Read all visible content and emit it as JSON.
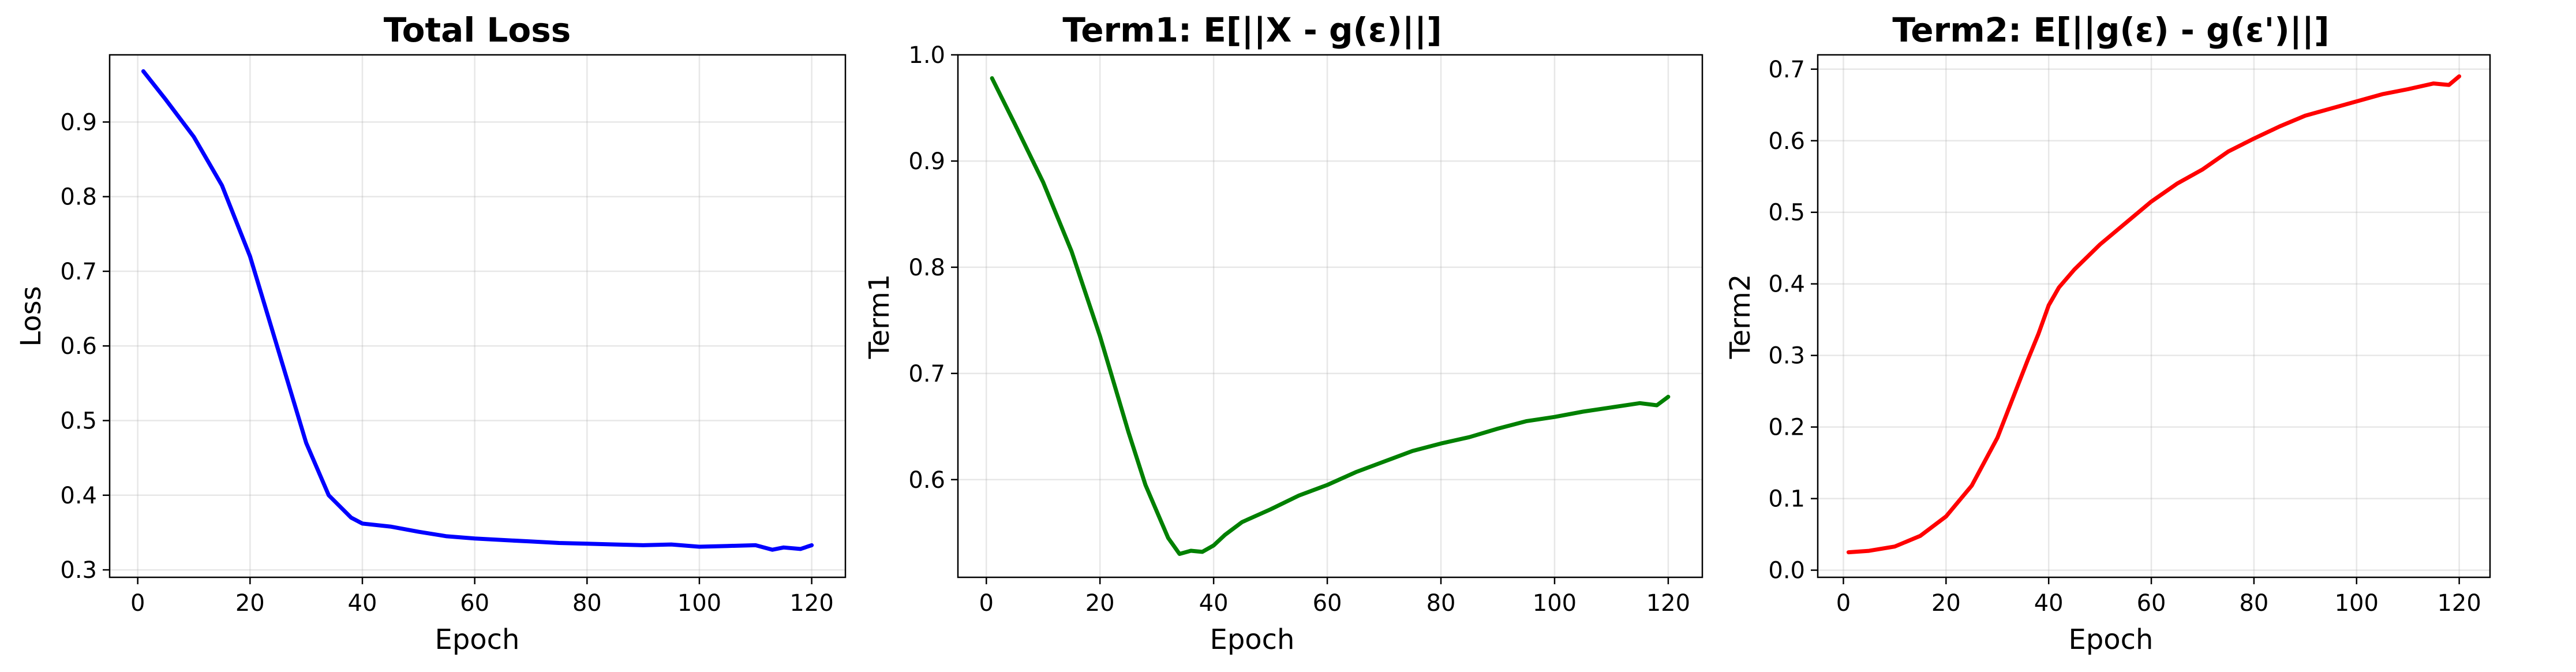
{
  "figure": {
    "background": "#ffffff"
  },
  "chart_data": [
    {
      "type": "line",
      "title": "Total Loss",
      "xlabel": "Epoch",
      "ylabel": "Loss",
      "xlim": [
        -5,
        126
      ],
      "ylim": [
        0.29,
        0.99
      ],
      "xticks": [
        0,
        20,
        40,
        60,
        80,
        100,
        120
      ],
      "xtick_labels": [
        "0",
        "20",
        "40",
        "60",
        "80",
        "100",
        "120"
      ],
      "yticks": [
        0.3,
        0.4,
        0.5,
        0.6,
        0.7,
        0.8,
        0.9
      ],
      "ytick_labels": [
        "0.3",
        "0.4",
        "0.5",
        "0.6",
        "0.7",
        "0.8",
        "0.9"
      ],
      "grid": true,
      "series": [
        {
          "color": "#0000ff",
          "x": [
            1,
            5,
            10,
            15,
            20,
            25,
            30,
            32,
            34,
            36,
            38,
            40,
            45,
            50,
            55,
            60,
            65,
            70,
            75,
            80,
            85,
            90,
            95,
            100,
            105,
            110,
            113,
            115,
            118,
            120
          ],
          "y": [
            0.968,
            0.93,
            0.88,
            0.815,
            0.72,
            0.595,
            0.47,
            0.435,
            0.4,
            0.385,
            0.37,
            0.362,
            0.358,
            0.351,
            0.345,
            0.342,
            0.34,
            0.338,
            0.336,
            0.335,
            0.334,
            0.333,
            0.334,
            0.331,
            0.332,
            0.333,
            0.327,
            0.33,
            0.328,
            0.333
          ]
        }
      ]
    },
    {
      "type": "line",
      "title": "Term1: E[||X - g(ε)||]",
      "xlabel": "Epoch",
      "ylabel": "Term1",
      "xlim": [
        -5,
        126
      ],
      "ylim": [
        0.508,
        1.0
      ],
      "xticks": [
        0,
        20,
        40,
        60,
        80,
        100,
        120
      ],
      "xtick_labels": [
        "0",
        "20",
        "40",
        "60",
        "80",
        "100",
        "120"
      ],
      "yticks": [
        0.6,
        0.7,
        0.8,
        0.9,
        1.0
      ],
      "ytick_labels": [
        "0.6",
        "0.7",
        "0.8",
        "0.9",
        "1.0"
      ],
      "grid": true,
      "series": [
        {
          "color": "#008000",
          "x": [
            1,
            5,
            10,
            15,
            20,
            25,
            28,
            30,
            32,
            34,
            36,
            38,
            40,
            42,
            45,
            50,
            55,
            60,
            65,
            70,
            75,
            80,
            85,
            90,
            95,
            100,
            105,
            110,
            115,
            118,
            120
          ],
          "y": [
            0.978,
            0.935,
            0.88,
            0.815,
            0.735,
            0.645,
            0.595,
            0.57,
            0.545,
            0.53,
            0.533,
            0.532,
            0.538,
            0.548,
            0.56,
            0.572,
            0.585,
            0.595,
            0.607,
            0.617,
            0.627,
            0.634,
            0.64,
            0.648,
            0.655,
            0.659,
            0.664,
            0.668,
            0.672,
            0.67,
            0.678
          ]
        }
      ]
    },
    {
      "type": "line",
      "title": "Term2: E[||g(ε) - g(ε')||]",
      "xlabel": "Epoch",
      "ylabel": "Term2",
      "xlim": [
        -5,
        126
      ],
      "ylim": [
        -0.01,
        0.72
      ],
      "xticks": [
        0,
        20,
        40,
        60,
        80,
        100,
        120
      ],
      "xtick_labels": [
        "0",
        "20",
        "40",
        "60",
        "80",
        "100",
        "120"
      ],
      "yticks": [
        0.0,
        0.1,
        0.2,
        0.3,
        0.4,
        0.5,
        0.6,
        0.7
      ],
      "ytick_labels": [
        "0.0",
        "0.1",
        "0.2",
        "0.3",
        "0.4",
        "0.5",
        "0.6",
        "0.7"
      ],
      "grid": true,
      "series": [
        {
          "color": "#ff0000",
          "x": [
            1,
            5,
            10,
            15,
            20,
            25,
            30,
            33,
            36,
            38,
            40,
            42,
            45,
            50,
            55,
            60,
            65,
            70,
            75,
            80,
            85,
            90,
            95,
            100,
            105,
            110,
            115,
            118,
            120
          ],
          "y": [
            0.025,
            0.027,
            0.033,
            0.048,
            0.075,
            0.118,
            0.185,
            0.24,
            0.295,
            0.33,
            0.37,
            0.395,
            0.42,
            0.455,
            0.485,
            0.515,
            0.54,
            0.56,
            0.585,
            0.603,
            0.62,
            0.635,
            0.645,
            0.655,
            0.665,
            0.672,
            0.68,
            0.678,
            0.69
          ]
        }
      ]
    }
  ]
}
